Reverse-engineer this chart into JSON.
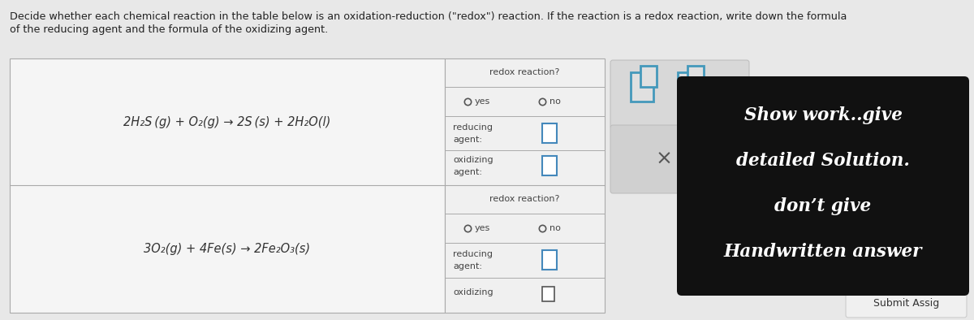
{
  "bg_color": "#e8e8e8",
  "header_text_line1": "Decide whether each chemical reaction in the table below is an oxidation-reduction (\"redox\") reaction. If the reaction is a redox reaction, write down the formula",
  "header_text_line2": "of the reducing agent and the formula of the oxidizing agent.",
  "reaction1": "2H₂S (g) + O₂(g) → 2S (s) + 2H₂O(l)",
  "reaction2": "3O₂(g) + 4Fe(s) → 2Fe₂O₃(s)",
  "redox_label": "redox reaction?",
  "yes_label": "yes",
  "no_label": "no",
  "reducing_label_line1": "reducing",
  "reducing_label_line2": "agent:",
  "oxidizing_label_line1": "oxidizing",
  "oxidizing_label_line2": "agent:",
  "oxidizing_label_short": "oxidizing",
  "show_work_lines": [
    "Show work..give",
    "detailed Solution.",
    "don’t give",
    "Handwritten answer"
  ],
  "submit_label": "Submit Assig",
  "cell_bg": "#f5f5f5",
  "right_cell_bg": "#f0f0f0",
  "dark_box_bg": "#111111",
  "dark_box_text_color": "#ffffff",
  "icon_panel_bg": "#e0e0e0",
  "x_panel_bg": "#d8d8d8",
  "header_fontsize": 9.2,
  "reaction_fontsize": 10.5,
  "label_fontsize": 8.0,
  "redox_fontsize": 8.0,
  "show_work_fontsize": 15.5
}
